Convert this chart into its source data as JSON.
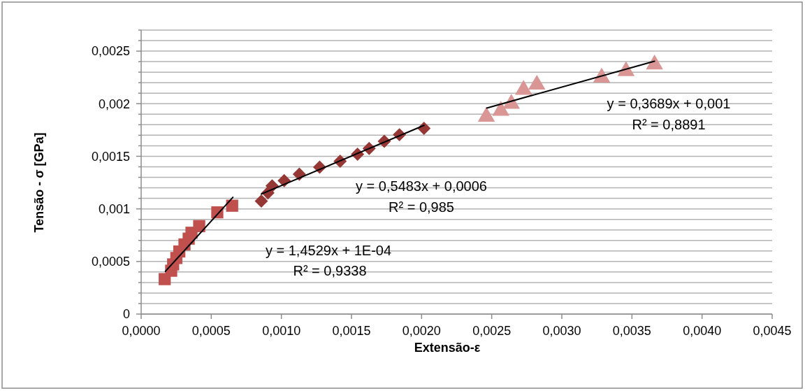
{
  "chart_data": {
    "type": "scatter",
    "xlabel": "Extensão-ε",
    "ylabel": "Tensão - σ  [GPa]",
    "xlim": [
      0,
      0.0045
    ],
    "ylim": [
      0,
      0.0027
    ],
    "xticks": [
      {
        "value": 0,
        "label": "0,0000"
      },
      {
        "value": 0.0005,
        "label": "0,0005"
      },
      {
        "value": 0.001,
        "label": "0,0010"
      },
      {
        "value": 0.0015,
        "label": "0,0015"
      },
      {
        "value": 0.002,
        "label": "0,0020"
      },
      {
        "value": 0.0025,
        "label": "0,0025"
      },
      {
        "value": 0.003,
        "label": "0,0030"
      },
      {
        "value": 0.0035,
        "label": "0,0035"
      },
      {
        "value": 0.004,
        "label": "0,0040"
      },
      {
        "value": 0.0045,
        "label": "0,0045"
      }
    ],
    "yticks": [
      0,
      {
        "value": 0.0001,
        "label": null
      },
      {
        "value": 0.0002,
        "label": null
      },
      {
        "value": 0.0003,
        "label": null
      },
      {
        "value": 0.0004,
        "label": null
      },
      {
        "value": 0.0005,
        "label": "0,0005"
      },
      {
        "value": 0.0006,
        "label": null
      },
      {
        "value": 0.0007,
        "label": null
      },
      {
        "value": 0.0008,
        "label": null
      },
      {
        "value": 0.0009,
        "label": null
      },
      {
        "value": 0.001,
        "label": "0,001"
      },
      {
        "value": 0.0011,
        "label": null
      },
      {
        "value": 0.0012,
        "label": null
      },
      {
        "value": 0.0013,
        "label": null
      },
      {
        "value": 0.0014,
        "label": null
      },
      {
        "value": 0.0015,
        "label": "0,0015"
      },
      {
        "value": 0.0016,
        "label": null
      },
      {
        "value": 0.0017,
        "label": null
      },
      {
        "value": 0.0018,
        "label": null
      },
      {
        "value": 0.0019,
        "label": null
      },
      {
        "value": 0.002,
        "label": "0,002"
      },
      {
        "value": 0.0021,
        "label": null
      },
      {
        "value": 0.0022,
        "label": null
      },
      {
        "value": 0.0023,
        "label": null
      },
      {
        "value": 0.0024,
        "label": null
      },
      {
        "value": 0.0025,
        "label": "0,0025"
      },
      {
        "value": 0.0026,
        "label": null
      },
      {
        "value": 0.0027,
        "label": null
      }
    ],
    "grid": "y",
    "series": [
      {
        "marker": "square",
        "color": "#c0504d",
        "x": [
          0.000168,
          0.000214,
          0.000228,
          0.000251,
          0.000272,
          0.000309,
          0.000339,
          0.000359,
          0.000414,
          0.000543,
          0.000649
        ],
        "values": [
          0.000332,
          0.000412,
          0.000472,
          0.000533,
          0.000595,
          0.000662,
          0.000717,
          0.000773,
          0.000836,
          0.000967,
          0.00103
        ]
      },
      {
        "marker": "diamond",
        "color": "#953735",
        "x": [
          0.000857,
          0.000904,
          0.000934,
          0.00102,
          0.001128,
          0.001273,
          0.001419,
          0.001543,
          0.001626,
          0.001734,
          0.001842,
          0.002017
        ],
        "values": [
          0.001074,
          0.001152,
          0.001219,
          0.001268,
          0.00133,
          0.001397,
          0.001453,
          0.00152,
          0.001575,
          0.001642,
          0.001705,
          0.001765
        ]
      },
      {
        "marker": "triangle",
        "color": "#d99694",
        "x": [
          0.002462,
          0.002565,
          0.00264,
          0.002727,
          0.002822,
          0.003284,
          0.003458,
          0.003661
        ],
        "values": [
          0.001876,
          0.001932,
          0.001999,
          0.002132,
          0.002181,
          0.002248,
          0.00231,
          0.002373
        ]
      },
      {
        "type": "line",
        "line_style": "solid",
        "color": "#000000",
        "x": [
          0.000173,
          0.000654
        ],
        "values": [
          0.000406,
          0.00111
        ]
      },
      {
        "type": "line",
        "line_style": "solid",
        "color": "#000000",
        "x": [
          0.000857,
          0.002017
        ],
        "values": [
          0.001141,
          0.001794
        ]
      },
      {
        "type": "line",
        "line_style": "solid",
        "color": "#000000",
        "x": [
          0.002465,
          0.003661
        ],
        "values": [
          0.001959,
          0.002404
        ]
      }
    ],
    "annotations": [
      "y = 1,4529x + 1E-04",
      "R² = 0,9338",
      "y = 0,5483x + 0,0006",
      "R² = 0,985",
      "y = 0,3689x + 0,001",
      "R² = 0,8891"
    ]
  }
}
